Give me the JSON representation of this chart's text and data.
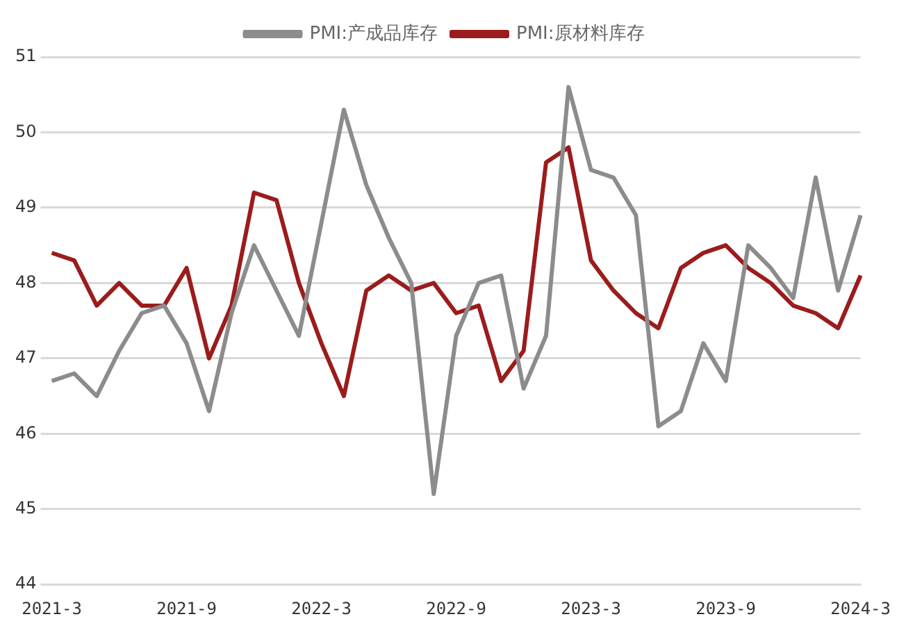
{
  "chart_data": {
    "type": "line",
    "categories": [
      "2021-3",
      null,
      null,
      null,
      null,
      null,
      "2021-9",
      null,
      null,
      null,
      null,
      null,
      "2022-3",
      null,
      null,
      null,
      null,
      null,
      "2022-9",
      null,
      null,
      null,
      null,
      null,
      "2023-3",
      null,
      null,
      null,
      null,
      null,
      "2023-9",
      null,
      null,
      null,
      null,
      null,
      "2024-3"
    ],
    "series": [
      {
        "name": "PMI:产成品库存",
        "color": "#8c8c8c",
        "values": [
          46.7,
          46.8,
          46.5,
          47.1,
          47.6,
          47.7,
          47.2,
          46.3,
          47.6,
          48.5,
          47.9,
          47.3,
          48.8,
          50.3,
          49.3,
          48.6,
          48.0,
          45.2,
          47.3,
          48.0,
          48.1,
          46.6,
          47.3,
          50.6,
          49.5,
          49.4,
          48.9,
          46.1,
          46.3,
          47.2,
          46.7,
          48.5,
          48.2,
          47.8,
          49.4,
          47.9,
          48.9
        ]
      },
      {
        "name": "PMI:原材料库存",
        "color": "#9b1c1c",
        "values": [
          48.4,
          48.3,
          47.7,
          48.0,
          47.7,
          47.7,
          48.2,
          47.0,
          47.7,
          49.2,
          49.1,
          48.0,
          47.2,
          46.5,
          47.9,
          48.1,
          47.9,
          48.0,
          47.6,
          47.7,
          46.7,
          47.1,
          49.6,
          49.8,
          48.3,
          47.9,
          47.6,
          47.4,
          48.2,
          48.4,
          48.5,
          48.2,
          48.0,
          47.7,
          47.6,
          47.4,
          48.1
        ]
      }
    ],
    "ylim": [
      44,
      51
    ],
    "yticks": [
      44,
      45,
      46,
      47,
      48,
      49,
      50,
      51
    ],
    "grid": "y",
    "legend": "top",
    "marker": "none",
    "line_style": "solid"
  }
}
